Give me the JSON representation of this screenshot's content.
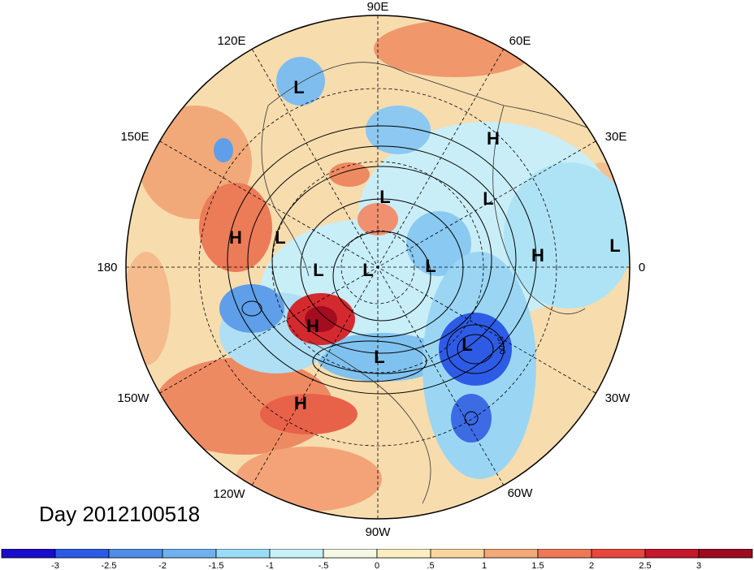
{
  "title": "Day 2012100518",
  "longitude_labels": [
    {
      "id": "90e",
      "text": "90E"
    },
    {
      "id": "60e",
      "text": "60E"
    },
    {
      "id": "30e",
      "text": "30E"
    },
    {
      "id": "0",
      "text": "0"
    },
    {
      "id": "30w",
      "text": "30W"
    },
    {
      "id": "60w",
      "text": "60W"
    },
    {
      "id": "90w",
      "text": "90W"
    },
    {
      "id": "120w",
      "text": "120W"
    },
    {
      "id": "150w",
      "text": "150W"
    },
    {
      "id": "180",
      "text": "180"
    },
    {
      "id": "150e",
      "text": "150E"
    },
    {
      "id": "120e",
      "text": "120E"
    }
  ],
  "pressure_centers": [
    {
      "text": "L"
    },
    {
      "text": "H"
    },
    {
      "text": "L"
    },
    {
      "text": "L"
    },
    {
      "text": "H"
    },
    {
      "text": "L"
    },
    {
      "text": "H"
    },
    {
      "text": "L"
    },
    {
      "text": "L"
    },
    {
      "text": "L"
    },
    {
      "text": "L"
    },
    {
      "text": "H"
    },
    {
      "text": "L"
    },
    {
      "text": "L"
    },
    {
      "text": "H"
    }
  ],
  "contour_label": "5700",
  "colorbar": {
    "colors": [
      "#1a0ccd",
      "#2c59e6",
      "#4f8de6",
      "#6fb1ee",
      "#9adcf6",
      "#c9f0f8",
      "#f4f8e4",
      "#fbeec0",
      "#f8d79e",
      "#f3a878",
      "#ee7857",
      "#e8473d",
      "#c6162b",
      "#9c0a1f"
    ],
    "tick_labels": [
      "-3",
      "-2.5",
      "-2",
      "-1.5",
      "-1",
      "-.5",
      "0",
      ".5",
      "1",
      "1.5",
      "2",
      "2.5",
      "3"
    ]
  }
}
